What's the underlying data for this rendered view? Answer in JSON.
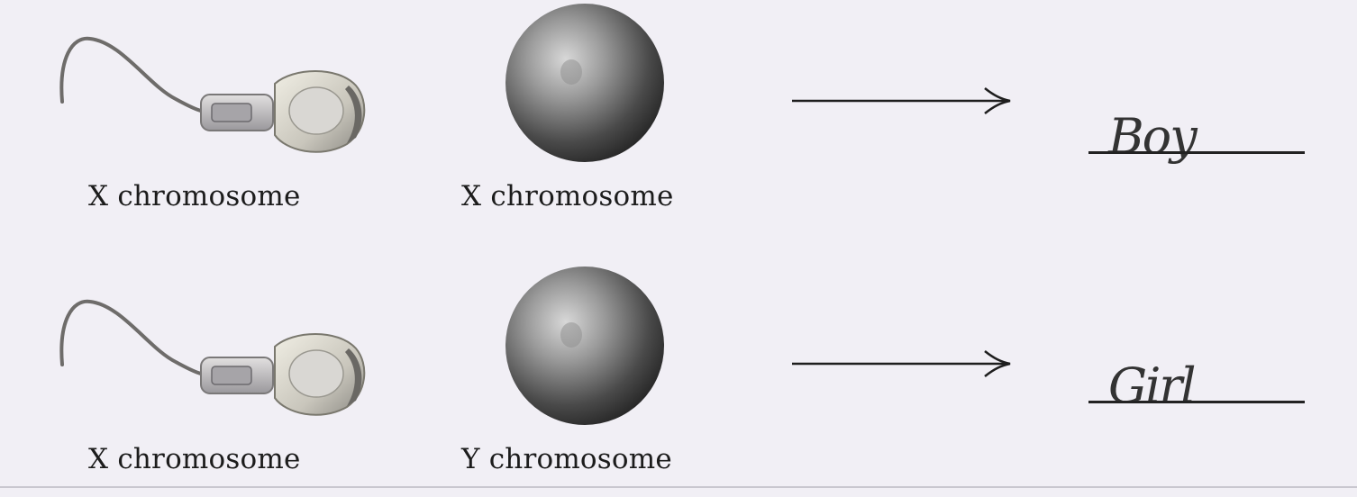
{
  "rows": [
    {
      "sperm_label": "X chromosome",
      "egg_label": "X chromosome",
      "answer": "Boy"
    },
    {
      "sperm_label": "X chromosome",
      "egg_label": "Y chromosome",
      "answer": "Girl"
    }
  ],
  "colors": {
    "background": "#f1eff5",
    "ink": "#1c1c1c",
    "sperm_body": "#c8c8cc",
    "egg_dark": "#3a3a3a"
  }
}
